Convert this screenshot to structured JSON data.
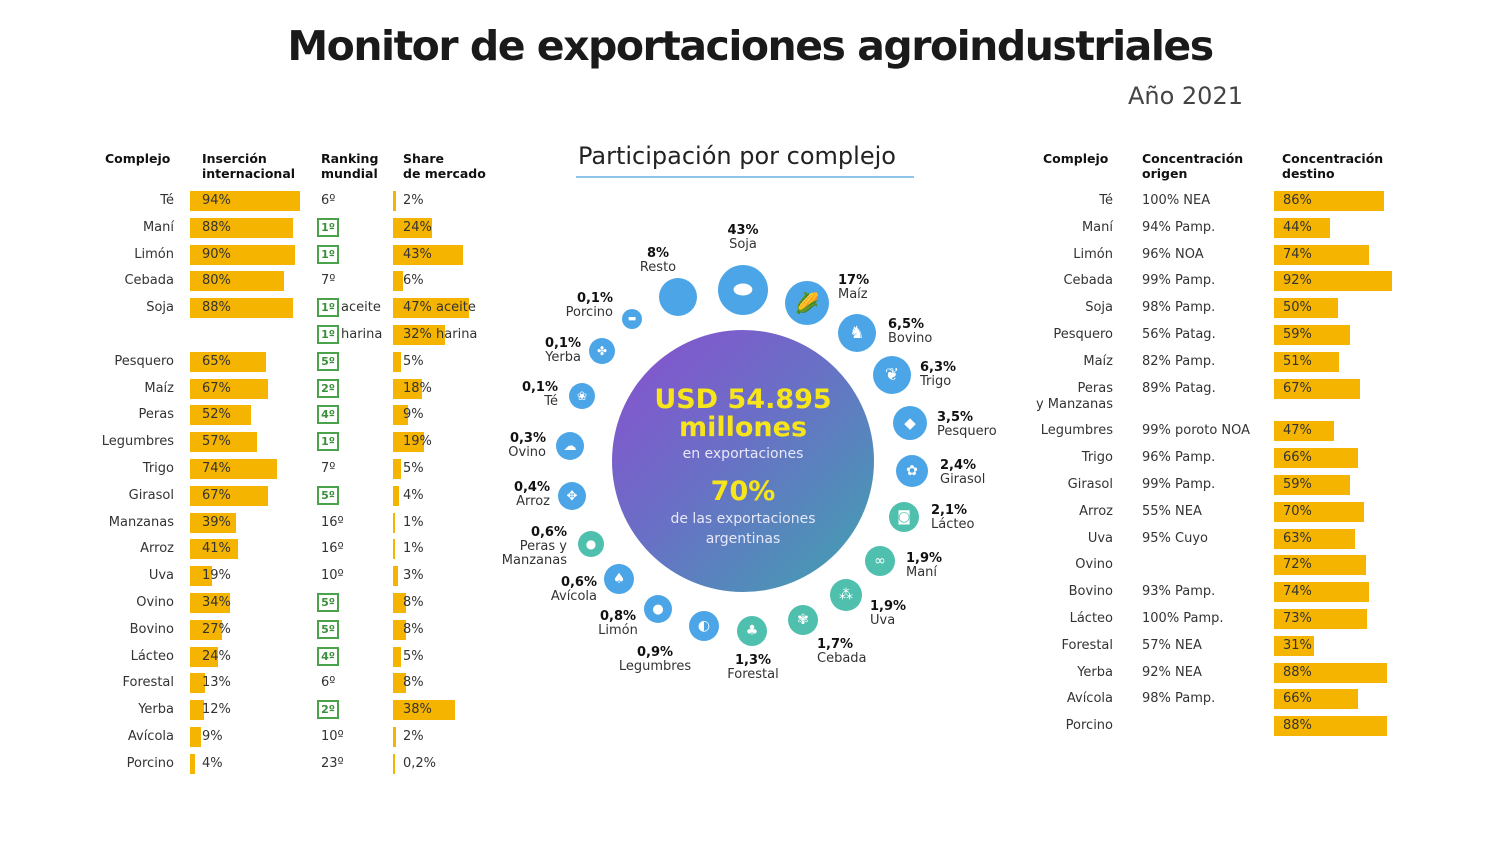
{
  "title": "Monitor de exportaciones agroindustriales",
  "year": "Año 2021",
  "colors": {
    "bar": "#f5b400",
    "rank_box": "#4aa34a",
    "icon_blue": "#4ca5e6",
    "icon_teal": "#4fbfae",
    "circle_gradient": [
      "#8a4fd0",
      "#3fa3b0"
    ],
    "highlight_text": "#f7e51c"
  },
  "left_table": {
    "headers": [
      "Complejo",
      "Inserción\ninternacional",
      "Ranking\nmundial",
      "Share\nde mercado"
    ],
    "rows": [
      {
        "complejo": "Té",
        "insercion": "94%",
        "ranking": "6º",
        "ranking_highlight": false,
        "share": "2%",
        "share_value": 2
      },
      {
        "complejo": "Maní",
        "insercion": "88%",
        "ranking": "1º",
        "ranking_highlight": true,
        "share": "24%",
        "share_value": 24
      },
      {
        "complejo": "Limón",
        "insercion": "90%",
        "ranking": "1º",
        "ranking_highlight": true,
        "share": "43%",
        "share_value": 43
      },
      {
        "complejo": "Cebada",
        "insercion": "80%",
        "ranking": "7º",
        "ranking_highlight": false,
        "share": "6%",
        "share_value": 6
      },
      {
        "complejo": "Soja",
        "insercion": "88%",
        "ranking": "1º",
        "ranking_note": "aceite",
        "ranking_highlight": true,
        "share": "47% aceite",
        "share_value": 47
      },
      {
        "complejo": "",
        "insercion": "",
        "ranking": "1º",
        "ranking_note": "harina",
        "ranking_highlight": true,
        "share": "32% harina",
        "share_value": 32
      },
      {
        "complejo": "Pesquero",
        "insercion": "65%",
        "ranking": "5º",
        "ranking_highlight": true,
        "share": "5%",
        "share_value": 5
      },
      {
        "complejo": "Maíz",
        "insercion": "67%",
        "ranking": "2º",
        "ranking_highlight": true,
        "share": "18%",
        "share_value": 18
      },
      {
        "complejo": "Peras",
        "insercion": "52%",
        "ranking": "4º",
        "ranking_highlight": true,
        "share": "9%",
        "share_value": 9
      },
      {
        "complejo": "Legumbres",
        "insercion": "57%",
        "ranking": "1º",
        "ranking_highlight": true,
        "share": "19%",
        "share_value": 19
      },
      {
        "complejo": "Trigo",
        "insercion": "74%",
        "ranking": "7º",
        "ranking_highlight": false,
        "share": "5%",
        "share_value": 5
      },
      {
        "complejo": "Girasol",
        "insercion": "67%",
        "ranking": "5º",
        "ranking_highlight": true,
        "share": "4%",
        "share_value": 4
      },
      {
        "complejo": "Manzanas",
        "insercion": "39%",
        "ranking": "16º",
        "ranking_highlight": false,
        "share": "1%",
        "share_value": 1
      },
      {
        "complejo": "Arroz",
        "insercion": "41%",
        "ranking": "16º",
        "ranking_highlight": false,
        "share": "1%",
        "share_value": 1
      },
      {
        "complejo": "Uva",
        "insercion": "19%",
        "ranking": "10º",
        "ranking_highlight": false,
        "share": "3%",
        "share_value": 3
      },
      {
        "complejo": "Ovino",
        "insercion": "34%",
        "ranking": "5º",
        "ranking_highlight": true,
        "share": "8%",
        "share_value": 8
      },
      {
        "complejo": "Bovino",
        "insercion": "27%",
        "ranking": "5º",
        "ranking_highlight": true,
        "share": "8%",
        "share_value": 8
      },
      {
        "complejo": "Lácteo",
        "insercion": "24%",
        "ranking": "4º",
        "ranking_highlight": true,
        "share": "5%",
        "share_value": 5
      },
      {
        "complejo": "Forestal",
        "insercion": "13%",
        "ranking": "6º",
        "ranking_highlight": false,
        "share": "8%",
        "share_value": 8
      },
      {
        "complejo": "Yerba",
        "insercion": "12%",
        "ranking": "2º",
        "ranking_highlight": true,
        "share": "38%",
        "share_value": 38
      },
      {
        "complejo": "Avícola",
        "insercion": "9%",
        "ranking": "10º",
        "ranking_highlight": false,
        "share": "2%",
        "share_value": 2
      },
      {
        "complejo": "Porcino",
        "insercion": "4%",
        "ranking": "23º",
        "ranking_highlight": false,
        "share": "0,2%",
        "share_value": 0.2
      }
    ]
  },
  "right_table": {
    "headers": [
      "Complejo",
      "Concentración\norigen",
      "Concentración\ndestino"
    ],
    "rows": [
      {
        "complejo": "Té",
        "origen": "100% NEA",
        "destino": "86%"
      },
      {
        "complejo": "Maní",
        "origen": "94% Pamp.",
        "destino": "44%"
      },
      {
        "complejo": "Limón",
        "origen": "96% NOA",
        "destino": "74%"
      },
      {
        "complejo": "Cebada",
        "origen": "99% Pamp.",
        "destino": "92%"
      },
      {
        "complejo": "Soja",
        "origen": "98% Pamp.",
        "destino": "50%"
      },
      {
        "complejo": "Pesquero",
        "origen": "56% Patag.",
        "destino": "59%"
      },
      {
        "complejo": "Maíz",
        "origen": "82% Pamp.",
        "destino": "51%"
      },
      {
        "complejo": "Peras\ny Manzanas",
        "origen": "89% Patag.",
        "destino": "67%"
      },
      {
        "complejo": "Legumbres",
        "origen": "99% poroto NOA",
        "destino": "47%"
      },
      {
        "complejo": "Trigo",
        "origen": "96% Pamp.",
        "destino": "66%"
      },
      {
        "complejo": "Girasol",
        "origen": "99% Pamp.",
        "destino": "59%"
      },
      {
        "complejo": "Arroz",
        "origen": "55% NEA",
        "destino": "70%"
      },
      {
        "complejo": "Uva",
        "origen": "95% Cuyo",
        "destino": "63%"
      },
      {
        "complejo": "Ovino",
        "origen": "",
        "destino": "72%"
      },
      {
        "complejo": "Bovino",
        "origen": "93% Pamp.",
        "destino": "74%"
      },
      {
        "complejo": "Lácteo",
        "origen": "100% Pamp.",
        "destino": "73%"
      },
      {
        "complejo": "Forestal",
        "origen": "57% NEA",
        "destino": "31%"
      },
      {
        "complejo": "Yerba",
        "origen": "92% NEA",
        "destino": "88%"
      },
      {
        "complejo": "Avícola",
        "origen": "98% Pamp.",
        "destino": "66%"
      },
      {
        "complejo": "Porcino",
        "origen": "",
        "destino": "88%"
      }
    ]
  },
  "center": {
    "title": "Participación por complejo",
    "total": "USD 54.895\nmillones",
    "total_sub": "en exportaciones",
    "share": "70%",
    "share_sub": "de las exportaciones\nargentinas"
  },
  "chart_data": {
    "type": "pie",
    "title": "Participación por complejo",
    "slices": [
      {
        "label": "Soja",
        "pct": "43%",
        "value": 43,
        "icon": "soybean-icon"
      },
      {
        "label": "Maíz",
        "pct": "17%",
        "value": 17,
        "icon": "corn-icon"
      },
      {
        "label": "Bovino",
        "pct": "6,5%",
        "value": 6.5,
        "icon": "cow-icon"
      },
      {
        "label": "Trigo",
        "pct": "6,3%",
        "value": 6.3,
        "icon": "wheat-icon"
      },
      {
        "label": "Pesquero",
        "pct": "3,5%",
        "value": 3.5,
        "icon": "fish-icon"
      },
      {
        "label": "Girasol",
        "pct": "2,4%",
        "value": 2.4,
        "icon": "sunflower-icon"
      },
      {
        "label": "Lácteo",
        "pct": "2,1%",
        "value": 2.1,
        "icon": "milk-icon"
      },
      {
        "label": "Maní",
        "pct": "1,9%",
        "value": 1.9,
        "icon": "peanut-icon"
      },
      {
        "label": "Uva",
        "pct": "1,9%",
        "value": 1.9,
        "icon": "grape-icon"
      },
      {
        "label": "Cebada",
        "pct": "1,7%",
        "value": 1.7,
        "icon": "barley-icon"
      },
      {
        "label": "Forestal",
        "pct": "1,3%",
        "value": 1.3,
        "icon": "tree-icon"
      },
      {
        "label": "Legumbres",
        "pct": "0,9%",
        "value": 0.9,
        "icon": "bean-icon"
      },
      {
        "label": "Limón",
        "pct": "0,8%",
        "value": 0.8,
        "icon": "lemon-icon"
      },
      {
        "label": "Avícola",
        "pct": "0,6%",
        "value": 0.6,
        "icon": "chicken-icon"
      },
      {
        "label": "Peras y\nManzanas",
        "pct": "0,6%",
        "value": 0.6,
        "icon": "apple-icon"
      },
      {
        "label": "Arroz",
        "pct": "0,4%",
        "value": 0.4,
        "icon": "rice-icon"
      },
      {
        "label": "Ovino",
        "pct": "0,3%",
        "value": 0.3,
        "icon": "sheep-icon"
      },
      {
        "label": "Té",
        "pct": "0,1%",
        "value": 0.1,
        "icon": "tea-icon"
      },
      {
        "label": "Yerba",
        "pct": "0,1%",
        "value": 0.1,
        "icon": "yerba-icon"
      },
      {
        "label": "Porcino",
        "pct": "0,1%",
        "value": 0.1,
        "icon": "pig-icon"
      },
      {
        "label": "Resto",
        "pct": "8%",
        "value": 8,
        "icon": "blank-circle"
      }
    ]
  }
}
